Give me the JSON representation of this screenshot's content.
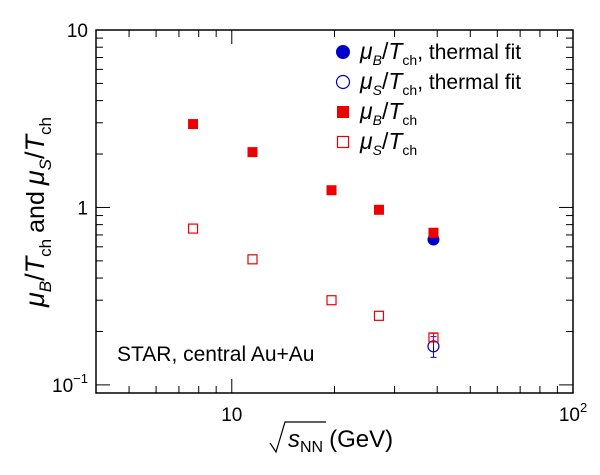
{
  "chart_data": {
    "type": "scatter",
    "title": "",
    "xlabel": "√s_NN (GeV)",
    "xlabel_parts": {
      "symbol": "s",
      "subscript": "NN",
      "unit": "(GeV)"
    },
    "ylabel": "μ_B/T_ch and μ_S/T_ch",
    "ylabel_parts": {
      "mu": "μ",
      "sub_b": "B",
      "slash": "/",
      "t": "T",
      "sub_ch": "ch",
      "and": "and",
      "sub_s": "S"
    },
    "xscale": "log",
    "yscale": "log",
    "xlim": [
      4,
      100
    ],
    "ylim": [
      0.09,
      10
    ],
    "x_tick_labels": [
      {
        "value": 10,
        "base": "10",
        "exp": ""
      },
      {
        "value": 100,
        "base": "10",
        "exp": "2"
      }
    ],
    "y_tick_labels": [
      {
        "value": 0.1,
        "base": "10",
        "exp": "−1"
      },
      {
        "value": 1,
        "base": "1",
        "exp": ""
      },
      {
        "value": 10,
        "base": "10",
        "exp": ""
      }
    ],
    "grid": false,
    "legend_position": "top-right",
    "annotation": "STAR, central Au+Au",
    "series": [
      {
        "name": "μ_B/T_ch, thermal fit",
        "legend_parts": {
          "mu": "μ",
          "sub": "B",
          "slash": "/",
          "t": "T",
          "sub2": "ch",
          "suffix": ", thermal fit"
        },
        "marker": "filled-circle",
        "color": "#0000cc",
        "x": [
          39
        ],
        "y": [
          0.66
        ],
        "err": [
          0.04
        ]
      },
      {
        "name": "μ_S/T_ch, thermal fit",
        "legend_parts": {
          "mu": "μ",
          "sub": "S",
          "slash": "/",
          "t": "T",
          "sub2": "ch",
          "suffix": ", thermal fit"
        },
        "marker": "open-circle",
        "color": "#0000cc",
        "x": [
          39
        ],
        "y": [
          0.165
        ],
        "err": [
          0.022
        ]
      },
      {
        "name": "μ_B/T_ch",
        "legend_parts": {
          "mu": "μ",
          "sub": "B",
          "slash": "/",
          "t": "T",
          "sub2": "ch",
          "suffix": ""
        },
        "marker": "filled-square",
        "color": "#ee0000",
        "x": [
          7.7,
          11.5,
          19.6,
          27,
          39
        ],
        "y": [
          2.95,
          2.05,
          1.25,
          0.97,
          0.72
        ],
        "err": [
          0,
          0,
          0,
          0,
          0.02
        ]
      },
      {
        "name": "μ_S/T_ch",
        "legend_parts": {
          "mu": "μ",
          "sub": "S",
          "slash": "/",
          "t": "T",
          "sub2": "ch",
          "suffix": ""
        },
        "marker": "open-square",
        "color": "#ee0000",
        "x": [
          7.7,
          11.5,
          19.6,
          27,
          39
        ],
        "y": [
          0.76,
          0.51,
          0.3,
          0.245,
          0.185
        ],
        "err": [
          0,
          0,
          0,
          0,
          0.01
        ]
      }
    ]
  }
}
